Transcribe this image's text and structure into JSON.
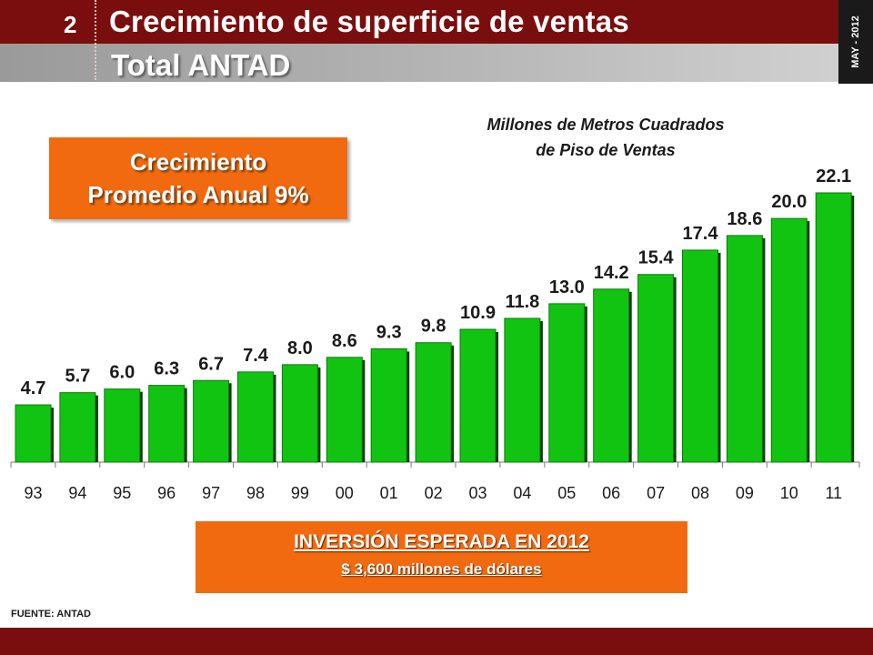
{
  "header": {
    "slide_number": "2",
    "title": "Crecimiento de superficie de ventas",
    "subtitle": "Total ANTAD",
    "date": "MAY - 2012"
  },
  "growth_box": {
    "line1": "Crecimiento",
    "line2": "Promedio Anual 9%"
  },
  "investment_box": {
    "title": "INVERSIÓN ESPERADA EN  2012",
    "subtitle": "$ 3,600 millones de dólares"
  },
  "source": "FUENTE: ANTAD",
  "colors": {
    "header": "#7a0e0e",
    "accent_orange": "#f26a0f",
    "bar": "#12c412",
    "bar_shadow": "#0a3d0a"
  },
  "chart_data": {
    "type": "bar",
    "title": "",
    "unit_label": [
      "Millones de Metros Cuadrados",
      "de Piso de Ventas"
    ],
    "xlabel": "",
    "ylabel": "",
    "categories": [
      "93",
      "94",
      "95",
      "96",
      "97",
      "98",
      "99",
      "00",
      "01",
      "02",
      "03",
      "04",
      "05",
      "06",
      "07",
      "08",
      "09",
      "10",
      "11"
    ],
    "values": [
      4.7,
      5.7,
      6.0,
      6.3,
      6.7,
      7.4,
      8.0,
      8.6,
      9.3,
      9.8,
      10.9,
      11.8,
      13.0,
      14.2,
      15.4,
      17.4,
      18.6,
      20.0,
      22.1
    ],
    "data_labels": [
      "4.7",
      "5.7",
      "6.0",
      "6.3",
      "6.7",
      "7.4",
      "8.0",
      "8.6",
      "9.3",
      "9.8",
      "10.9",
      "11.8",
      "13.0",
      "14.2",
      "15.4",
      "17.4",
      "18.6",
      "20.0",
      "22.1"
    ],
    "ylim": [
      0,
      22.1
    ],
    "grid": false,
    "legend": "none"
  }
}
